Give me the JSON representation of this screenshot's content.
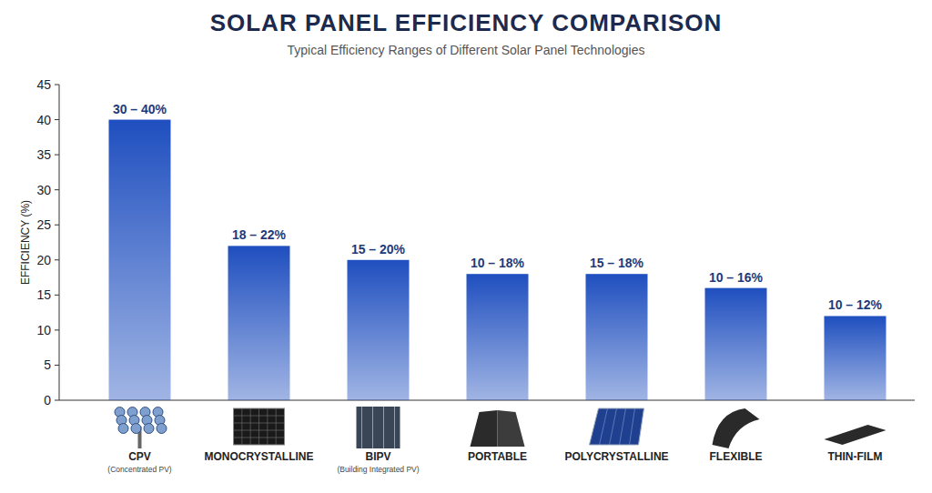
{
  "chart_data": {
    "type": "bar",
    "title": "SOLAR PANEL EFFICIENCY COMPARISON",
    "subtitle": "Typical Efficiency Ranges of Different Solar Panel Technologies",
    "y_label": "EFFICIENCY (%)",
    "categories": [
      "CPV",
      "MONOCRYSTALLINE",
      "BIPV",
      "PORTABLE",
      "POLYCRYSTALLINE",
      "FLEXIBLE",
      "THIN-FILM"
    ],
    "category_subtitles": [
      "(Concentrated PV)",
      null,
      "(Building Integrated PV)",
      null,
      null,
      null,
      null
    ],
    "values": [
      40,
      22,
      20,
      18,
      18,
      16,
      12
    ],
    "value_labels": [
      "30 – 40%",
      "18 – 22%",
      "15 – 20%",
      "10 – 18%",
      "15 – 18%",
      "10 – 16%",
      "10 – 12%"
    ],
    "color": "#1f4fbf",
    "ylim": [
      0,
      45
    ],
    "yticks": [
      0,
      5,
      10,
      15,
      20,
      25,
      30,
      35,
      40,
      45
    ],
    "grid": false,
    "data_labels": true
  }
}
